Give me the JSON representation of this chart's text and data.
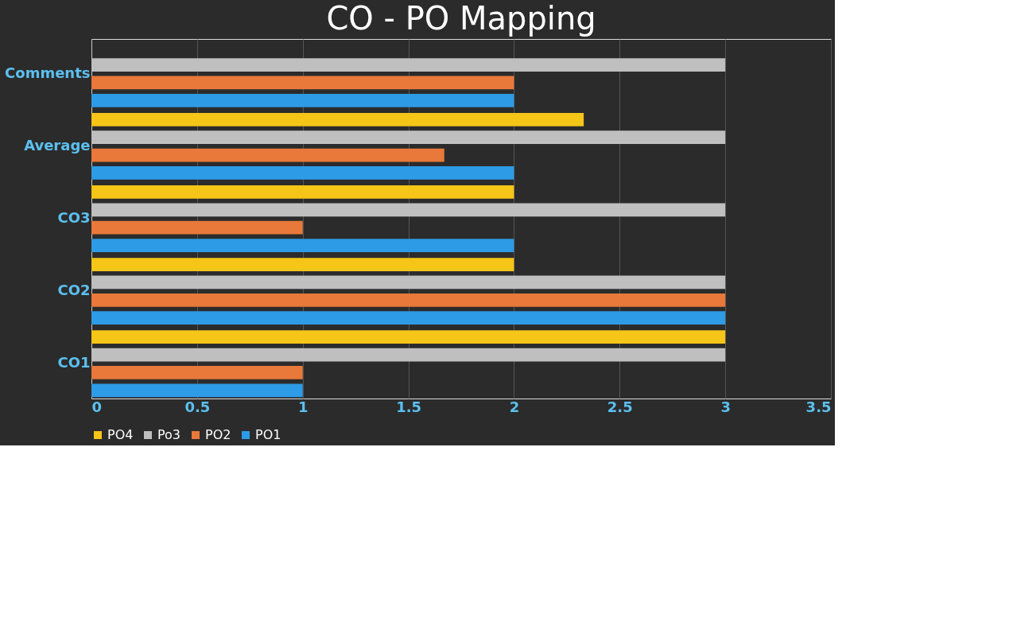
{
  "chart_data": {
    "type": "bar",
    "orientation": "horizontal",
    "title": "CO - PO Mapping",
    "categories": [
      "Comments",
      "Average",
      "CO3",
      "CO2",
      "CO1"
    ],
    "series": [
      {
        "name": "PO4",
        "color": "#f5c518",
        "values": [
          null,
          2.33,
          2,
          2,
          3
        ]
      },
      {
        "name": "Po3",
        "color": "#bfbfbf",
        "values": [
          3,
          3,
          3,
          3,
          3
        ]
      },
      {
        "name": "PO2",
        "color": "#e8793a",
        "values": [
          2,
          1.67,
          1,
          3,
          1
        ]
      },
      {
        "name": "PO1",
        "color": "#2e9be6",
        "values": [
          2,
          2,
          2,
          3,
          1
        ]
      }
    ],
    "xlim": [
      0,
      3.5
    ],
    "xticks": [
      0,
      0.5,
      1,
      1.5,
      2,
      2.5,
      3,
      3.5
    ],
    "grid": "x",
    "legend": "bottom"
  }
}
